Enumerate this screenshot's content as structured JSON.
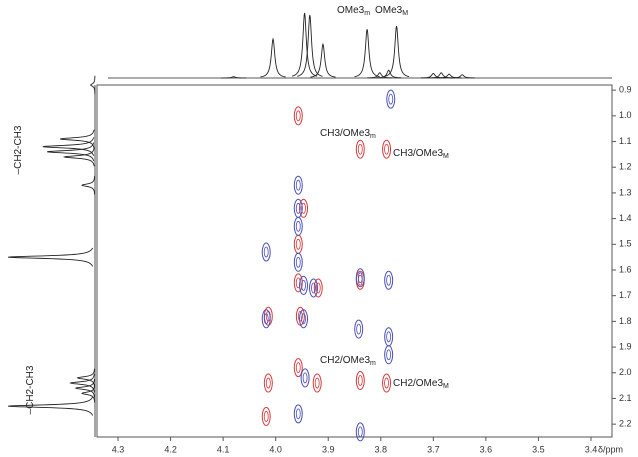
{
  "chart_data": {
    "type": "contour2d",
    "x_label": "δ/ppm",
    "xlim": [
      4.34,
      3.36
    ],
    "ylim": [
      0.88,
      2.25
    ],
    "xticks": [
      4.3,
      4.2,
      4.1,
      {
        "value": 4,
        "label": "4.0"
      },
      3.9,
      3.8,
      3.7,
      3.6,
      3.5,
      3.4
    ],
    "yticks": [
      0.9,
      {
        "value": 1,
        "label": "1.0"
      },
      1.1,
      1.2,
      1.3,
      1.4,
      1.5,
      1.6,
      1.7,
      1.8,
      1.9,
      {
        "value": 2,
        "label": "2.0"
      },
      2.1,
      2.2
    ],
    "series": [
      {
        "name": "positive",
        "color": "#d63a3c",
        "x": [
          3.957,
          3.839,
          3.789,
          3.947,
          3.957,
          3.957,
          3.839,
          3.919,
          4.014,
          3.953,
          3.957,
          3.921,
          3.839,
          3.789,
          4.014,
          4.018
        ],
        "y": [
          1.0,
          1.13,
          1.13,
          1.36,
          1.5,
          1.65,
          1.64,
          1.67,
          1.78,
          1.78,
          1.98,
          2.04,
          2.03,
          2.04,
          2.04,
          2.17
        ]
      },
      {
        "name": "negative",
        "color": "#4a4fb8",
        "x": [
          3.781,
          3.957,
          3.957,
          3.957,
          3.957,
          3.947,
          3.839,
          3.785,
          3.928,
          4.018,
          3.947,
          3.842,
          3.785,
          3.785,
          3.944,
          3.957,
          3.839,
          4.018
        ],
        "y": [
          0.935,
          1.27,
          1.36,
          1.43,
          1.57,
          1.66,
          1.63,
          1.64,
          1.67,
          1.79,
          1.79,
          1.83,
          1.86,
          1.93,
          2.02,
          2.16,
          2.23,
          1.53
        ]
      }
    ],
    "top_projection": {
      "shifts": [
        4.08,
        4.005,
        3.945,
        3.935,
        3.91,
        3.826,
        3.802,
        3.785,
        3.77,
        3.7,
        3.685,
        3.67,
        3.645
      ],
      "heights": [
        2,
        60,
        100,
        97,
        52,
        75,
        8,
        12,
        80,
        7,
        8,
        6,
        5
      ]
    },
    "left_projection": {
      "shifts": [
        0.88,
        1.09,
        1.12,
        1.14,
        1.16,
        1.27,
        1.55,
        2.02,
        2.04,
        2.06,
        2.08,
        2.13
      ],
      "heights": [
        5,
        40,
        60,
        55,
        35,
        15,
        100,
        20,
        28,
        22,
        15,
        100
      ]
    },
    "annotations": [
      {
        "text": "OMe3",
        "sub": "m"
      },
      {
        "text": "OMe3",
        "sub": "M"
      },
      {
        "text": "CH3/OMe3",
        "sub": "m"
      },
      {
        "text": "CH3/OMe3",
        "sub": "M"
      },
      {
        "text": "CH2/OMe3",
        "sub": "m"
      },
      {
        "text": "CH2/OMe3",
        "sub": "M"
      },
      {
        "text": "–CH2-CH3"
      },
      {
        "text": "–CH2-CH3"
      }
    ]
  }
}
